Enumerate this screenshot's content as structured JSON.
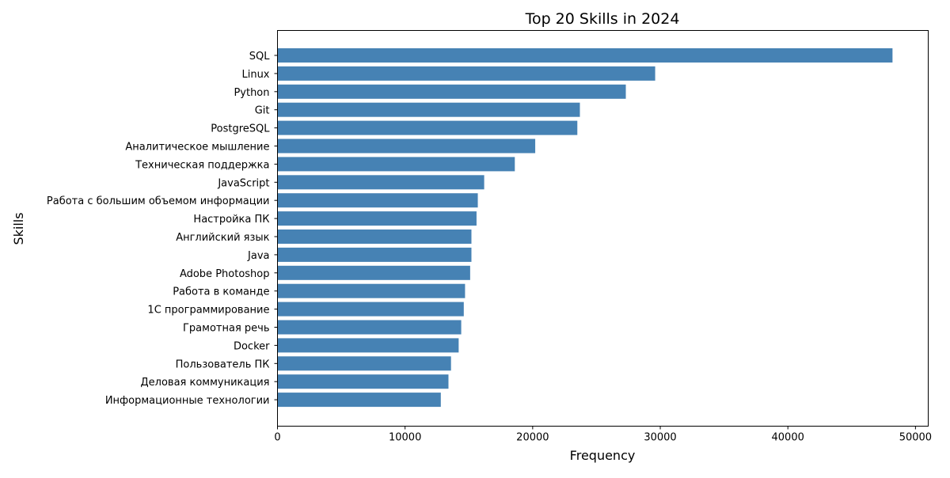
{
  "chart_data": {
    "type": "bar",
    "orientation": "horizontal",
    "title": "Top 20 Skills in 2024",
    "xlabel": "Frequency",
    "ylabel": "Skills",
    "xlim": [
      0,
      51000
    ],
    "xticks": [
      0,
      10000,
      20000,
      30000,
      40000,
      50000
    ],
    "grid": false,
    "bar_color": "#4682b4",
    "categories": [
      "SQL",
      "Linux",
      "Python",
      "Git",
      "PostgreSQL",
      "Аналитическое мышление",
      "Техническая поддержка",
      "JavaScript",
      "Работа с большим объемом информации",
      "Настройка ПК",
      "Английский язык",
      "Java",
      "Adobe Photoshop",
      "Работа в команде",
      "1С программирование",
      "Грамотная речь",
      "Docker",
      "Пользователь ПК",
      "Деловая коммуникация",
      "Информационные технологии"
    ],
    "values": [
      48200,
      29600,
      27300,
      23700,
      23500,
      20200,
      18600,
      16200,
      15700,
      15600,
      15200,
      15200,
      15100,
      14700,
      14600,
      14400,
      14200,
      13600,
      13400,
      12800
    ]
  }
}
